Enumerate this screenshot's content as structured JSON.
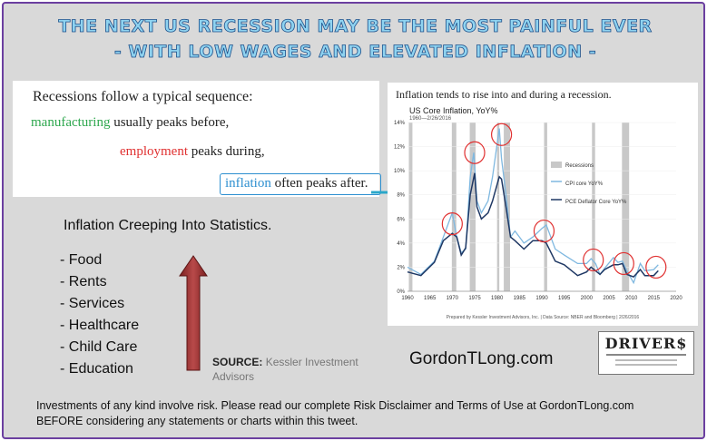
{
  "header": {
    "line1": "THE NEXT US RECESSION MAY BE THE MOST PAINFUL EVER",
    "line2": "- WITH LOW WAGES AND ELEVATED INFLATION -"
  },
  "sequence": {
    "title": "Recessions follow a typical sequence:",
    "manufacturing_word": "manufacturing",
    "manufacturing_rest": "usually peaks before,",
    "employment_word": "employment",
    "employment_rest": "peaks during,",
    "inflation_word": "inflation",
    "inflation_rest": "often peaks after."
  },
  "creeping": {
    "title": "Inflation Creeping Into Statistics.",
    "items": [
      "- Food",
      "- Rents",
      "- Services",
      "- Healthcare",
      "- Child Care",
      "- Education"
    ]
  },
  "source": {
    "label": "SOURCE:",
    "text": "Kessler Investment Advisors"
  },
  "site": "GordonTLong.com",
  "logo": {
    "text": "DRIVER$"
  },
  "disclaimer": {
    "line1": "Investments of any kind involve  risk. Please read our complete  Risk Disclaimer and Terms of Use at GordonTLong.com",
    "line2": "BEFORE considering  any statements or charts within this tweet."
  },
  "colors": {
    "cpi": "#7fb8e0",
    "pce": "#1f3864",
    "recession": "#c8c8c8",
    "circle": "#e03131",
    "arrow": "#2aa7c9",
    "up_arrow": "#9b2c2c"
  },
  "chart_data": {
    "type": "line",
    "title": "Inflation tends to rise into and during a recession.",
    "inner_title": "US Core Inflation, YoY%",
    "subtitle": "1960—2/26/2016",
    "source_note": "Prepared by Kessler Investment Advisors, Inc. | Data Source: NBER and Bloomberg | 2/26/2016",
    "xlim": [
      1960,
      2020
    ],
    "ylim": [
      0,
      14
    ],
    "x_ticks": [
      1960,
      1965,
      1970,
      1975,
      1980,
      1985,
      1990,
      1995,
      2000,
      2005,
      2010,
      2015,
      2020
    ],
    "y_ticks": [
      "0%",
      "2%",
      "4%",
      "6%",
      "8%",
      "10%",
      "12%",
      "14%"
    ],
    "legend": [
      "Recessions",
      "CPI core YoY%",
      "PCE Deflator Core YoY%"
    ],
    "legend_position": "center-right",
    "recessions": [
      [
        1960.3,
        1961.1
      ],
      [
        1969.9,
        1970.9
      ],
      [
        1973.9,
        1975.2
      ],
      [
        1980.0,
        1980.5
      ],
      [
        1981.5,
        1982.9
      ],
      [
        1990.5,
        1991.2
      ],
      [
        2001.2,
        2001.9
      ],
      [
        2007.9,
        2009.5
      ]
    ],
    "series": [
      {
        "name": "CPI core YoY%",
        "x": [
          1960,
          1963,
          1966,
          1968,
          1970,
          1971,
          1972,
          1973,
          1974,
          1974.8,
          1975.5,
          1976.5,
          1978,
          1979,
          1980.5,
          1981,
          1982,
          1983,
          1984,
          1986,
          1988,
          1990,
          1991,
          1993,
          1995,
          1998,
          2000,
          2001,
          2002,
          2003,
          2004,
          2006,
          2007,
          2008,
          2009,
          2010.5,
          2012,
          2013,
          2015,
          2016
        ],
        "y": [
          2.0,
          1.4,
          2.5,
          4.5,
          6.5,
          4.5,
          3.2,
          3.5,
          9.5,
          11.5,
          7.5,
          6.5,
          7.5,
          9.5,
          13.5,
          11.0,
          8.0,
          4.5,
          5.0,
          4.0,
          4.5,
          5.2,
          5.5,
          3.5,
          3.0,
          2.3,
          2.3,
          2.7,
          2.3,
          1.4,
          1.9,
          2.8,
          2.4,
          2.5,
          1.7,
          0.7,
          2.3,
          1.7,
          1.8,
          2.2
        ]
      },
      {
        "name": "PCE Deflator Core YoY%",
        "x": [
          1960,
          1963,
          1966,
          1968,
          1970,
          1971,
          1972,
          1973,
          1974,
          1975,
          1975.5,
          1976.5,
          1978,
          1979,
          1980.5,
          1981,
          1982,
          1983,
          1984,
          1986,
          1988,
          1990,
          1991,
          1993,
          1995,
          1998,
          2000,
          2001,
          2002,
          2003,
          2004,
          2006,
          2007,
          2008,
          2009,
          2010.5,
          2012,
          2013,
          2015,
          2016
        ],
        "y": [
          1.6,
          1.3,
          2.4,
          4.2,
          4.8,
          4.5,
          3.0,
          3.6,
          8.0,
          9.8,
          7.0,
          6.0,
          6.5,
          7.5,
          9.5,
          9.3,
          7.0,
          4.5,
          4.2,
          3.5,
          4.2,
          4.2,
          4.0,
          2.5,
          2.2,
          1.3,
          1.6,
          2.0,
          1.7,
          1.4,
          1.8,
          2.2,
          2.2,
          2.3,
          1.4,
          1.2,
          1.8,
          1.3,
          1.3,
          1.7
        ]
      }
    ],
    "highlighted_peaks": [
      {
        "x": 1970,
        "y": 5.6
      },
      {
        "x": 1975,
        "y": 11.5
      },
      {
        "x": 1981,
        "y": 13.0
      },
      {
        "x": 1990.5,
        "y": 5.0
      },
      {
        "x": 2001.5,
        "y": 2.6
      },
      {
        "x": 2008.3,
        "y": 2.3
      },
      {
        "x": 2015.5,
        "y": 2.0
      }
    ]
  }
}
